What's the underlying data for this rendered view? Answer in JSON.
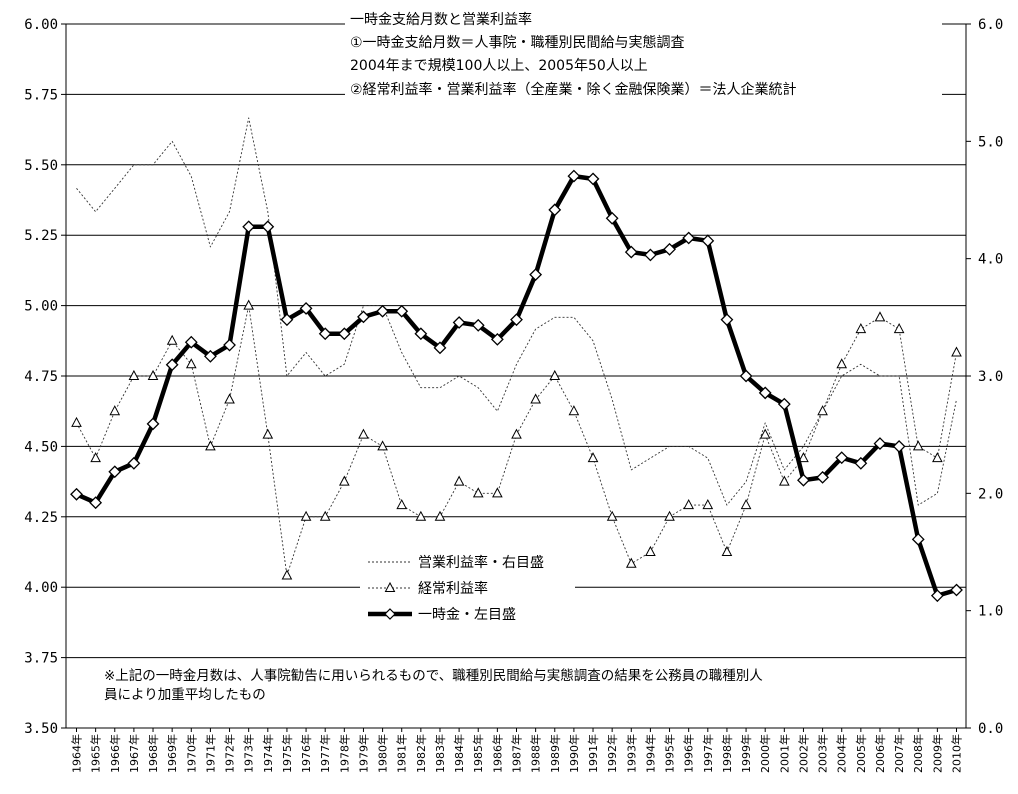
{
  "chart_data": {
    "type": "line",
    "title_lines": [
      "一時金支給月数と営業利益率",
      "①一時金支給月数＝人事院・職種別民間給与実態調査",
      "2004年まで規模100人以上、2005年50人以上",
      "②経常利益率・営業利益率（全産業・除く金融保険業）＝法人企業統計"
    ],
    "note_lines": [
      "※上記の一時金月数は、人事院勧告に用いられるもので、職種別民間給与実態調査の結果を公務員の職種別人",
      "員により加重平均したもの"
    ],
    "x": [
      "1964年",
      "1965年",
      "1966年",
      "1967年",
      "1968年",
      "1969年",
      "1970年",
      "1971年",
      "1972年",
      "1973年",
      "1974年",
      "1975年",
      "1976年",
      "1977年",
      "1978年",
      "1979年",
      "1980年",
      "1981年",
      "1982年",
      "1983年",
      "1984年",
      "1985年",
      "1986年",
      "1987年",
      "1988年",
      "1989年",
      "1990年",
      "1991年",
      "1992年",
      "1993年",
      "1994年",
      "1995年",
      "1996年",
      "1997年",
      "1998年",
      "1999年",
      "2000年",
      "2001年",
      "2002年",
      "2003年",
      "2004年",
      "2005年",
      "2006年",
      "2007年",
      "2008年",
      "2009年",
      "2010年"
    ],
    "y_left": {
      "min": 3.5,
      "max": 6.0,
      "step": 0.25,
      "ticks": [
        "3.50",
        "3.75",
        "4.00",
        "4.25",
        "4.50",
        "4.75",
        "5.00",
        "5.25",
        "5.50",
        "5.75",
        "6.00"
      ]
    },
    "y_right": {
      "min": 0.0,
      "max": 6.0,
      "step": 1.0,
      "ticks": [
        "0.0",
        "1.0",
        "2.0",
        "3.0",
        "4.0",
        "5.0",
        "6.0"
      ]
    },
    "grid": true,
    "legend_position": "bottom-center",
    "series": [
      {
        "name": "営業利益率・右目盛",
        "axis": "right",
        "style": "thin-dotted",
        "values": [
          4.6,
          4.4,
          4.6,
          4.8,
          4.8,
          5.0,
          4.7,
          4.1,
          4.4,
          5.2,
          4.4,
          3.0,
          3.2,
          3.0,
          3.1,
          3.6,
          3.6,
          3.2,
          2.9,
          2.9,
          3.0,
          2.9,
          2.7,
          3.1,
          3.4,
          3.5,
          3.5,
          3.3,
          2.8,
          2.2,
          2.3,
          2.4,
          2.4,
          2.3,
          1.9,
          2.1,
          2.6,
          2.2,
          2.4,
          2.7,
          3.0,
          3.1,
          3.0,
          3.0,
          1.9,
          2.0,
          2.8
        ]
      },
      {
        "name": "経常利益率",
        "axis": "right",
        "style": "dotted-triangle",
        "values": [
          2.6,
          2.3,
          2.7,
          3.0,
          3.0,
          3.3,
          3.1,
          2.4,
          2.8,
          3.6,
          2.5,
          1.3,
          1.8,
          1.8,
          2.1,
          2.5,
          2.4,
          1.9,
          1.8,
          1.8,
          2.1,
          2.0,
          2.0,
          2.5,
          2.8,
          3.0,
          2.7,
          2.3,
          1.8,
          1.4,
          1.5,
          1.8,
          1.9,
          1.9,
          1.5,
          1.9,
          2.5,
          2.1,
          2.3,
          2.7,
          3.1,
          3.4,
          3.5,
          3.4,
          2.4,
          2.3,
          3.2
        ]
      },
      {
        "name": "一時金・左目盛",
        "axis": "left",
        "style": "thick-diamond",
        "values": [
          4.33,
          4.3,
          4.41,
          4.44,
          4.58,
          4.79,
          4.87,
          4.82,
          4.86,
          5.28,
          5.28,
          4.95,
          4.99,
          4.9,
          4.9,
          4.96,
          4.98,
          4.98,
          4.9,
          4.85,
          4.94,
          4.93,
          4.88,
          4.95,
          5.11,
          5.34,
          5.46,
          5.45,
          5.31,
          5.19,
          5.18,
          5.2,
          5.24,
          5.23,
          4.95,
          4.75,
          4.69,
          4.65,
          4.38,
          4.39,
          4.46,
          4.44,
          4.51,
          4.5,
          4.17,
          3.97,
          3.99
        ]
      }
    ]
  }
}
